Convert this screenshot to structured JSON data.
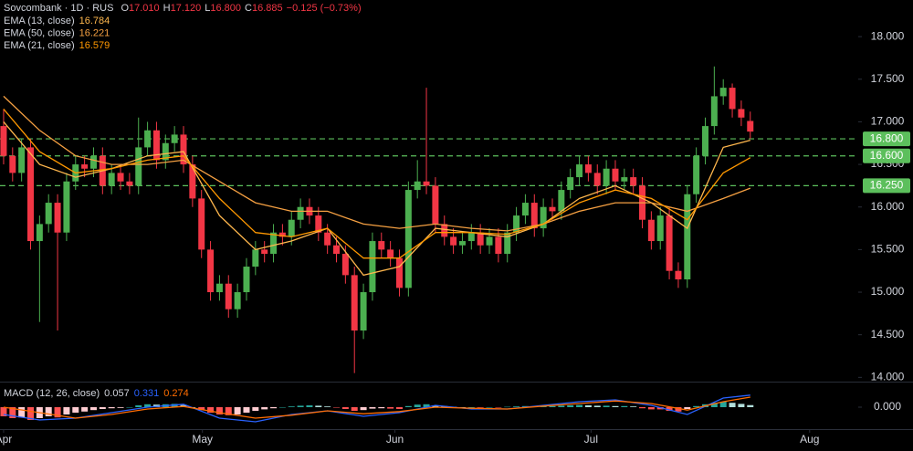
{
  "chart_data": [
    {
      "type": "candlestick",
      "title": "Sovcombank · 1D · RUS",
      "legend_ohlc": [
        {
          "key": "O",
          "text": "17.010"
        },
        {
          "key": "H",
          "text": "17.120"
        },
        {
          "key": "L",
          "text": "16.800"
        },
        {
          "key": "C",
          "text": "16.885"
        }
      ],
      "change": "−0.125 (−0.73%)",
      "up_color": "#4caf50",
      "down_color": "#f23645",
      "xlim": [
        -0.4,
        95.0
      ],
      "ylim": [
        13.95,
        18.43
      ],
      "yticks": [
        {
          "value": 14,
          "label": "14.000"
        },
        {
          "value": 14.5,
          "label": "14.500"
        },
        {
          "value": 15,
          "label": "15.000"
        },
        {
          "value": 15.5,
          "label": "15.500"
        },
        {
          "value": 16,
          "label": "16.000"
        },
        {
          "value": 16.5,
          "label": "16.500"
        },
        {
          "value": 17,
          "label": "17.000"
        },
        {
          "value": 17.5,
          "label": "17.500"
        },
        {
          "value": 18,
          "label": "18.000"
        }
      ],
      "open": [
        16.95,
        16.6,
        16.4,
        16.7,
        15.6,
        15.8,
        16.05,
        15.7,
        16.3,
        16.5,
        16.45,
        16.6,
        16.25,
        16.4,
        16.3,
        16.25,
        16.7,
        16.9,
        16.55,
        16.75,
        16.85,
        16.5,
        16.1,
        15.5,
        15.0,
        15.1,
        14.8,
        15.0,
        15.3,
        15.5,
        15.45,
        15.7,
        15.65,
        15.85,
        16.0,
        15.9,
        15.7,
        15.55,
        15.45,
        15.2,
        14.55,
        15.0,
        15.6,
        15.5,
        15.4,
        15.05,
        16.2,
        16.3,
        16.25,
        15.8,
        15.65,
        15.55,
        15.6,
        15.7,
        15.55,
        15.65,
        15.45,
        15.7,
        15.9,
        16.05,
        15.75,
        16.0,
        15.95,
        16.2,
        16.35,
        16.5,
        16.4,
        16.25,
        16.45,
        16.3,
        16.35,
        16.25,
        15.85,
        15.6,
        15.9,
        15.25,
        15.15,
        16.15,
        16.6,
        16.95,
        17.3,
        17.4,
        17.15,
        17.01
      ],
      "high": [
        17.15,
        16.7,
        16.8,
        16.8,
        15.9,
        16.15,
        16.15,
        16.4,
        16.6,
        16.6,
        16.7,
        16.7,
        16.5,
        16.5,
        16.4,
        17.05,
        17.0,
        17.0,
        16.85,
        16.95,
        16.95,
        16.6,
        16.2,
        15.6,
        15.2,
        15.2,
        15.1,
        15.4,
        15.6,
        15.6,
        15.8,
        15.8,
        15.95,
        16.1,
        16.1,
        16.0,
        15.8,
        15.65,
        15.55,
        15.3,
        15.1,
        15.7,
        15.7,
        15.6,
        15.5,
        16.3,
        16.55,
        17.4,
        16.35,
        15.9,
        15.75,
        15.7,
        15.8,
        15.8,
        15.75,
        15.75,
        15.8,
        16.0,
        16.15,
        16.15,
        16.1,
        16.1,
        16.3,
        16.45,
        16.6,
        16.6,
        16.5,
        16.55,
        16.55,
        16.45,
        16.45,
        16.35,
        15.95,
        16.0,
        16.0,
        15.35,
        16.25,
        16.7,
        17.05,
        17.65,
        17.5,
        17.45,
        17.25,
        17.12
      ],
      "low": [
        16.5,
        16.3,
        16.3,
        15.5,
        14.65,
        15.7,
        14.55,
        15.6,
        16.2,
        16.35,
        16.35,
        16.15,
        16.15,
        16.2,
        16.15,
        16.15,
        16.6,
        16.45,
        16.45,
        16.65,
        16.4,
        16.0,
        15.4,
        14.9,
        14.9,
        14.7,
        14.7,
        14.9,
        15.2,
        15.35,
        15.35,
        15.55,
        15.55,
        15.75,
        15.8,
        15.6,
        15.45,
        15.35,
        15.1,
        14.05,
        14.45,
        14.9,
        15.4,
        15.3,
        14.95,
        14.95,
        16.1,
        16.15,
        15.7,
        15.55,
        15.45,
        15.45,
        15.5,
        15.45,
        15.45,
        15.35,
        15.35,
        15.6,
        15.8,
        15.65,
        15.65,
        15.85,
        15.85,
        16.1,
        16.25,
        16.3,
        16.15,
        16.15,
        16.2,
        16.2,
        16.15,
        15.75,
        15.5,
        15.5,
        15.15,
        15.05,
        15.05,
        16.05,
        16.5,
        16.85,
        17.2,
        17.05,
        16.95,
        16.8
      ],
      "close": [
        16.6,
        16.4,
        16.7,
        15.6,
        15.8,
        16.05,
        15.7,
        16.3,
        16.5,
        16.45,
        16.6,
        16.25,
        16.4,
        16.3,
        16.25,
        16.7,
        16.9,
        16.55,
        16.75,
        16.85,
        16.5,
        16.1,
        15.5,
        15.0,
        15.1,
        14.8,
        15.0,
        15.3,
        15.5,
        15.45,
        15.7,
        15.65,
        15.85,
        16.0,
        15.9,
        15.7,
        15.55,
        15.45,
        15.2,
        14.55,
        15.0,
        15.6,
        15.5,
        15.4,
        15.05,
        16.2,
        16.3,
        16.25,
        15.8,
        15.65,
        15.55,
        15.6,
        15.7,
        15.55,
        15.65,
        15.45,
        15.7,
        15.9,
        16.05,
        15.75,
        16.0,
        15.95,
        16.2,
        16.35,
        16.5,
        16.4,
        16.25,
        16.45,
        16.3,
        16.35,
        16.25,
        15.85,
        15.6,
        15.9,
        15.25,
        15.15,
        16.15,
        16.6,
        16.95,
        17.3,
        17.4,
        17.15,
        17.05,
        16.885
      ],
      "series": [
        {
          "name": "EMA (13, close)",
          "last_label": "16.784",
          "color": "#ffb74d",
          "x": [
            0,
            4,
            8,
            12,
            16,
            20,
            24,
            28,
            32,
            36,
            40,
            44,
            48,
            52,
            56,
            60,
            64,
            68,
            72,
            76,
            80,
            83
          ],
          "values": [
            17.0,
            16.5,
            16.35,
            16.45,
            16.6,
            16.65,
            15.9,
            15.5,
            15.6,
            15.75,
            15.2,
            15.3,
            15.75,
            15.7,
            15.65,
            15.8,
            16.1,
            16.25,
            16.05,
            15.75,
            16.7,
            16.784
          ]
        },
        {
          "name": "EMA (50, close)",
          "last_label": "16.221",
          "color": "#f5a042",
          "x": [
            0,
            4,
            8,
            12,
            16,
            20,
            24,
            28,
            32,
            36,
            40,
            44,
            48,
            52,
            56,
            60,
            64,
            68,
            72,
            76,
            80,
            83
          ],
          "values": [
            17.3,
            16.9,
            16.6,
            16.5,
            16.5,
            16.55,
            16.3,
            16.05,
            15.95,
            15.95,
            15.8,
            15.75,
            15.8,
            15.75,
            15.72,
            15.8,
            15.95,
            16.05,
            16.05,
            15.95,
            16.1,
            16.221
          ]
        },
        {
          "name": "EMA (21, close)",
          "last_label": "16.579",
          "color": "#ff9800",
          "x": [
            0,
            4,
            8,
            12,
            16,
            20,
            24,
            28,
            32,
            36,
            40,
            44,
            48,
            52,
            56,
            60,
            64,
            68,
            72,
            76,
            80,
            83
          ],
          "values": [
            17.15,
            16.65,
            16.4,
            16.45,
            16.55,
            16.6,
            16.1,
            15.7,
            15.65,
            15.75,
            15.4,
            15.4,
            15.7,
            15.7,
            15.68,
            15.8,
            16.05,
            16.2,
            16.1,
            15.85,
            16.4,
            16.579
          ]
        }
      ],
      "levels": [
        {
          "value": 16.8,
          "label": "16.800"
        },
        {
          "value": 16.6,
          "label": "16.600"
        },
        {
          "value": 16.25,
          "label": "16.250"
        }
      ],
      "level_color": "#5cbf5c"
    },
    {
      "type": "macd",
      "title": "MACD (12, 26, close)",
      "xlim": [
        -0.4,
        95.0
      ],
      "ylim": [
        -0.6,
        0.65
      ],
      "yticks": [
        {
          "value": 0,
          "label": "0.000"
        }
      ],
      "xticks": [
        {
          "value": 0,
          "label": "Apr"
        },
        {
          "value": 22.1,
          "label": "May"
        },
        {
          "value": 43.5,
          "label": "Jun"
        },
        {
          "value": 65.3,
          "label": "Jul"
        },
        {
          "value": 89.6,
          "label": "Aug"
        }
      ],
      "histogram": {
        "name": "Histogram",
        "value_label": "0.057",
        "values": [
          -0.25,
          -0.3,
          -0.28,
          -0.35,
          -0.3,
          -0.25,
          -0.28,
          -0.2,
          -0.15,
          -0.12,
          -0.08,
          -0.05,
          -0.03,
          -0.02,
          0.0,
          0.05,
          0.08,
          0.07,
          0.08,
          0.09,
          0.06,
          0.0,
          -0.08,
          -0.15,
          -0.2,
          -0.22,
          -0.2,
          -0.15,
          -0.1,
          -0.06,
          -0.03,
          0.0,
          0.02,
          0.04,
          0.05,
          0.04,
          0.02,
          -0.01,
          -0.05,
          -0.1,
          -0.08,
          -0.04,
          -0.03,
          -0.04,
          -0.05,
          0.03,
          0.07,
          0.08,
          0.05,
          0.03,
          0.01,
          0.0,
          0.0,
          -0.01,
          0.0,
          -0.01,
          0.01,
          0.02,
          0.03,
          0.02,
          0.03,
          0.03,
          0.04,
          0.05,
          0.06,
          0.05,
          0.04,
          0.04,
          0.03,
          0.03,
          0.02,
          -0.03,
          -0.06,
          -0.06,
          -0.1,
          -0.12,
          -0.05,
          0.03,
          0.08,
          0.12,
          0.15,
          0.12,
          0.09,
          0.057
        ]
      },
      "series": [
        {
          "name": "MACD",
          "last_label": "0.331",
          "color": "#2962ff",
          "x": [
            0,
            4,
            8,
            12,
            16,
            20,
            24,
            28,
            32,
            36,
            40,
            44,
            48,
            52,
            56,
            60,
            64,
            68,
            72,
            76,
            80,
            83
          ],
          "values": [
            -0.2,
            -0.35,
            -0.3,
            -0.15,
            0.0,
            0.08,
            -0.3,
            -0.4,
            -0.2,
            -0.1,
            -0.25,
            -0.15,
            0.05,
            -0.05,
            -0.05,
            0.05,
            0.15,
            0.2,
            0.05,
            -0.2,
            0.25,
            0.331
          ]
        },
        {
          "name": "Signal",
          "last_label": "0.274",
          "color": "#ff6d00",
          "x": [
            0,
            4,
            8,
            12,
            16,
            20,
            24,
            28,
            32,
            36,
            40,
            44,
            48,
            52,
            56,
            60,
            64,
            68,
            72,
            76,
            80,
            83
          ],
          "values": [
            0.0,
            -0.15,
            -0.3,
            -0.2,
            -0.05,
            0.02,
            -0.15,
            -0.3,
            -0.22,
            -0.1,
            -0.18,
            -0.12,
            0.0,
            -0.03,
            -0.05,
            0.03,
            0.1,
            0.17,
            0.1,
            -0.08,
            0.15,
            0.274
          ]
        }
      ]
    }
  ]
}
